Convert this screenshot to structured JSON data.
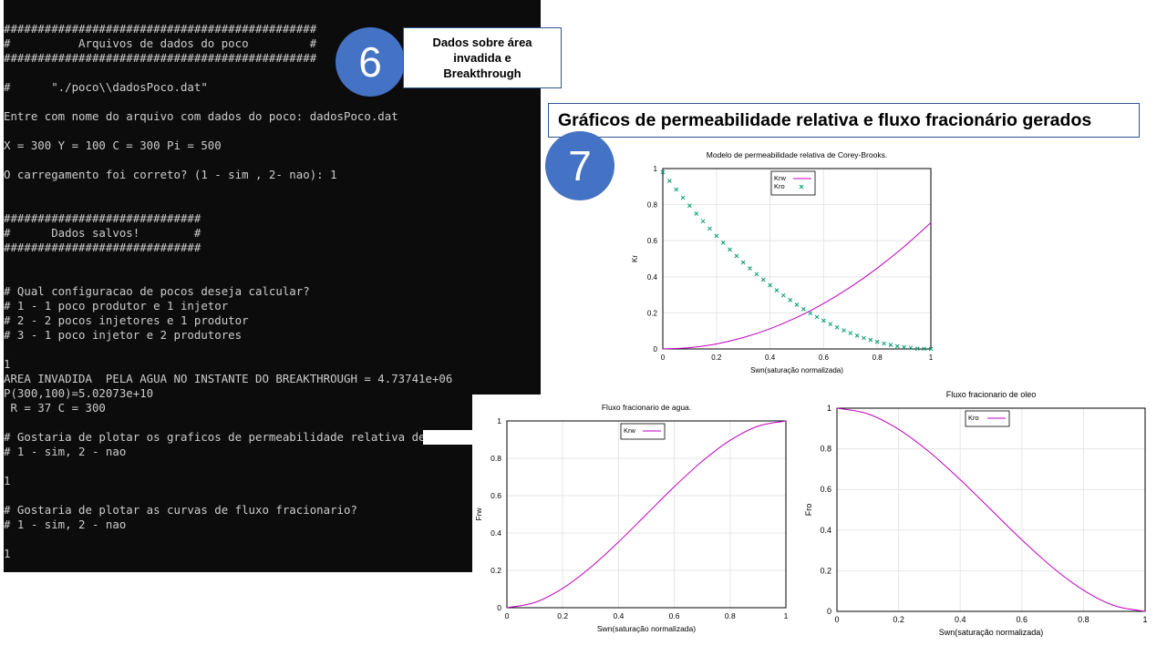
{
  "terminal": {
    "lines": [
      "##############################################",
      "#          Arquivos de dados do poco         #",
      "##############################################",
      "",
      "#      \"./poco\\\\dadosPoco.dat\"",
      "",
      "Entre com nome do arquivo com dados do poco: dadosPoco.dat",
      "",
      "X = 300 Y = 100 C = 300 Pi = 500",
      "",
      "O carregamento foi correto? (1 - sim , 2- nao): 1",
      "",
      "",
      "#############################",
      "#      Dados salvos!        #",
      "#############################",
      "",
      "",
      "# Qual configuracao de pocos deseja calcular?",
      "# 1 - 1 poco produtor e 1 injetor",
      "# 2 - 2 pocos injetores e 1 produtor",
      "# 3 - 1 poco injetor e 2 produtores",
      "",
      "1",
      "AREA INVADIDA  PELA AGUA NO INSTANTE DO BREAKTHROUGH = 4.73741e+06",
      "P(300,100)=5.02073e+10",
      " R = 37 C = 300",
      "",
      "# Gostaria de plotar os graficos de permeabilidade relativa de corey-bro",
      "# 1 - sim, 2 - nao",
      "",
      "1",
      "",
      "# Gostaria de plotar as curvas de fluxo fracionario?",
      "# 1 - sim, 2 - nao",
      "",
      "1"
    ]
  },
  "step6": {
    "number": "6",
    "callout": "Dados sobre área invadida e Breakthrough"
  },
  "step7": {
    "number": "7",
    "banner": "Gráficos de permeabilidade relativa e fluxo fracionário gerados"
  },
  "colors": {
    "accent_blue": "#4472c4",
    "border_blue": "#2f5597",
    "krw_purple": "#c000c0",
    "kro_green": "#009e73",
    "terminal_bg": "#0c0c0c"
  },
  "chart_data": [
    {
      "type": "line",
      "title": "Modelo de permeabilidade relativa de Corey-Brooks.",
      "xlabel": "Swn(saturação normalizada)",
      "ylabel": "Kr",
      "xlim": [
        0,
        1
      ],
      "ylim": [
        0,
        1
      ],
      "xticks": [
        "0",
        "0.2",
        "0.4",
        "0.6",
        "0.8",
        "1"
      ],
      "yticks": [
        "0",
        "0.2",
        "0.4",
        "0.6",
        "0.8",
        "1"
      ],
      "grid": true,
      "legend": "top-center",
      "series": [
        {
          "name": "Krw",
          "style": "line",
          "x": [
            0,
            0.1,
            0.2,
            0.3,
            0.4,
            0.5,
            0.6,
            0.7,
            0.8,
            0.9,
            1.0
          ],
          "values": [
            0,
            0.007,
            0.028,
            0.063,
            0.112,
            0.175,
            0.252,
            0.343,
            0.448,
            0.567,
            0.7
          ]
        },
        {
          "name": "Kro",
          "style": "points",
          "x": [
            0,
            0.025,
            0.05,
            0.075,
            0.1,
            0.125,
            0.15,
            0.175,
            0.2,
            0.225,
            0.25,
            0.275,
            0.3,
            0.325,
            0.35,
            0.375,
            0.4,
            0.425,
            0.45,
            0.475,
            0.5,
            0.525,
            0.55,
            0.575,
            0.6,
            0.625,
            0.65,
            0.675,
            0.7,
            0.725,
            0.75,
            0.775,
            0.8,
            0.825,
            0.85,
            0.875,
            0.9,
            0.925,
            0.95,
            0.975,
            1.0
          ],
          "values": [
            0.98,
            0.932,
            0.884,
            0.838,
            0.794,
            0.75,
            0.708,
            0.667,
            0.627,
            0.589,
            0.551,
            0.515,
            0.48,
            0.447,
            0.415,
            0.384,
            0.353,
            0.325,
            0.297,
            0.271,
            0.245,
            0.221,
            0.198,
            0.177,
            0.157,
            0.138,
            0.12,
            0.103,
            0.088,
            0.074,
            0.061,
            0.05,
            0.039,
            0.03,
            0.022,
            0.015,
            0.01,
            0.006,
            0.002,
            0.001,
            0
          ]
        }
      ]
    },
    {
      "type": "line",
      "title": "Fluxo fracionario de agua.",
      "xlabel": "Swn(saturação normalizada)",
      "ylabel": "Frw",
      "xlim": [
        0,
        1
      ],
      "ylim": [
        0,
        1
      ],
      "xticks": [
        "0",
        "0.2",
        "0.4",
        "0.6",
        "0.8",
        "1"
      ],
      "yticks": [
        "0",
        "0.2",
        "0.4",
        "0.6",
        "0.8",
        "1"
      ],
      "grid": true,
      "legend": "top-center",
      "series": [
        {
          "name": "Krw",
          "style": "line",
          "x": [
            0,
            0.1,
            0.2,
            0.3,
            0.4,
            0.5,
            0.6,
            0.7,
            0.8,
            0.9,
            1.0
          ],
          "values": [
            0,
            0.028,
            0.104,
            0.216,
            0.352,
            0.5,
            0.648,
            0.784,
            0.896,
            0.972,
            1.0
          ]
        }
      ]
    },
    {
      "type": "line",
      "title": "Fluxo fracionario de oleo",
      "xlabel": "Swn(saturação normalizada)",
      "ylabel": "Fro",
      "xlim": [
        0,
        1
      ],
      "ylim": [
        0,
        1
      ],
      "xticks": [
        "0",
        "0.2",
        "0.4",
        "0.6",
        "0.8",
        "1"
      ],
      "yticks": [
        "0",
        "0.2",
        "0.4",
        "0.6",
        "0.8",
        "1"
      ],
      "grid": true,
      "legend": "top-center",
      "series": [
        {
          "name": "Kro",
          "style": "line",
          "x": [
            0,
            0.1,
            0.2,
            0.3,
            0.4,
            0.5,
            0.6,
            0.7,
            0.8,
            0.9,
            1.0
          ],
          "values": [
            1.0,
            0.972,
            0.896,
            0.784,
            0.648,
            0.5,
            0.352,
            0.216,
            0.104,
            0.028,
            0
          ]
        }
      ]
    }
  ]
}
